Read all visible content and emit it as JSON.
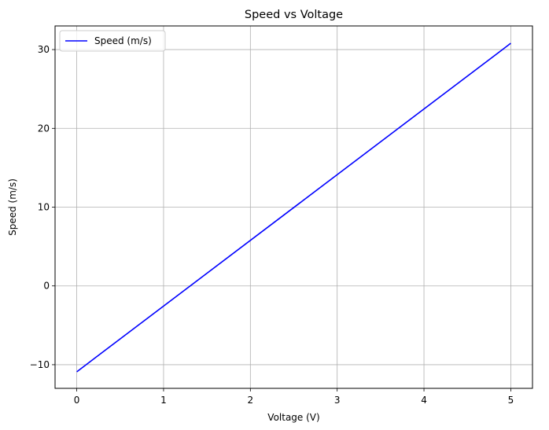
{
  "chart_data": {
    "type": "line",
    "title": "Speed vs Voltage",
    "xlabel": "Voltage (V)",
    "ylabel": "Speed (m/s)",
    "xlim": [
      -0.25,
      5.25
    ],
    "ylim": [
      -13,
      33
    ],
    "xticks": [
      0,
      1,
      2,
      3,
      4,
      5
    ],
    "yticks": [
      -10,
      0,
      10,
      20,
      30
    ],
    "xtick_labels": [
      "0",
      "1",
      "2",
      "3",
      "4",
      "5"
    ],
    "ytick_labels": [
      "−10",
      "0",
      "10",
      "20",
      "30"
    ],
    "grid": true,
    "legend_position": "top-left",
    "series": [
      {
        "name": "Speed (m/s)",
        "color": "#0000ff",
        "x": [
          0,
          5
        ],
        "y": [
          -10.9,
          30.8
        ]
      }
    ]
  },
  "colors": {
    "grid": "#b0b0b0",
    "axes": "#000000",
    "legend_border": "#cccccc"
  }
}
